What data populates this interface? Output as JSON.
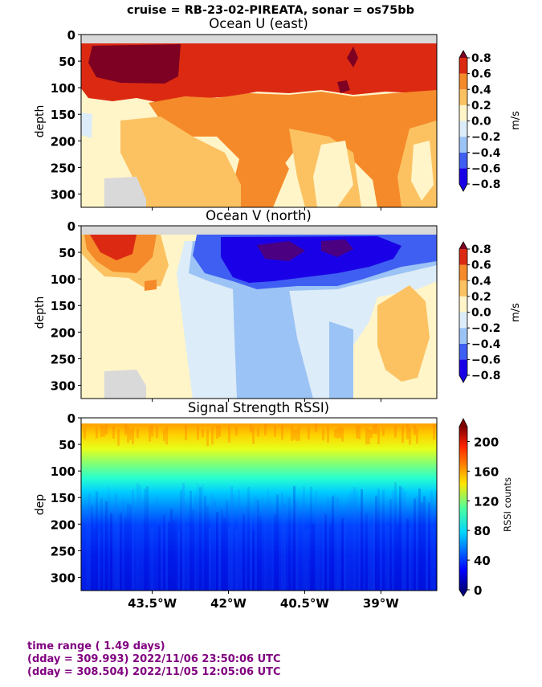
{
  "suptitle": "cruise = RB-23-02-PIREATA,  sonar = os75bb",
  "x_ticks": [
    "43.5°W",
    "42°W",
    "40.5°W",
    "39°W"
  ],
  "footer": {
    "line1": "time range ( 1.49 days)",
    "line2": "(dday = 309.993) 2022/11/06 23:50:06 UTC",
    "line3": "(dday = 308.504) 2022/11/05 12:05:06 UTC",
    "color": "#800080"
  },
  "chart_data": [
    {
      "type": "heatmap",
      "title": "Ocean U (east)",
      "xlabel": "",
      "ylabel": "depth",
      "ylim": [
        325,
        0
      ],
      "y_ticks": [
        "0",
        "50",
        "100",
        "150",
        "200",
        "250",
        "300"
      ],
      "y_tick_values": [
        0,
        50,
        100,
        150,
        200,
        250,
        300
      ],
      "x_tick_lon": [
        -43.5,
        -42.0,
        -40.5,
        -39.0
      ],
      "colorbar": {
        "label": "m/s",
        "ticks": [
          "0.8",
          "0.6",
          "0.4",
          "0.2",
          "0.0",
          "−0.2",
          "−0.4",
          "−0.6",
          "−0.8"
        ],
        "levels": [
          -0.8,
          -0.6,
          -0.4,
          -0.2,
          0.0,
          0.2,
          0.4,
          0.6,
          0.8
        ],
        "colors": [
          "#1a00e6",
          "#3f5ff2",
          "#9cc3f5",
          "#dcecf8",
          "#fff5c9",
          "#fcc262",
          "#f58a2a",
          "#dc2a12",
          "#7e0022"
        ]
      },
      "summary_profile": {
        "depth": [
          25,
          50,
          75,
          100,
          125,
          150,
          200,
          250,
          300
        ],
        "west_value": [
          0.8,
          0.85,
          0.8,
          0.35,
          0.1,
          0.05,
          0.08,
          0.1,
          0.15
        ],
        "east_value": [
          0.7,
          0.65,
          0.6,
          0.55,
          0.4,
          0.3,
          0.2,
          0.25,
          0.3
        ]
      }
    },
    {
      "type": "heatmap",
      "title": "Ocean V (north)",
      "xlabel": "",
      "ylabel": "depth",
      "ylim": [
        325,
        0
      ],
      "y_ticks": [
        "0",
        "50",
        "100",
        "150",
        "200",
        "250",
        "300"
      ],
      "y_tick_values": [
        0,
        50,
        100,
        150,
        200,
        250,
        300
      ],
      "x_tick_lon": [
        -43.5,
        -42.0,
        -40.5,
        -39.0
      ],
      "colorbar": {
        "label": "m/s",
        "ticks": [
          "0.8",
          "0.6",
          "0.4",
          "0.2",
          "0.0",
          "−0.2",
          "−0.4",
          "−0.6",
          "−0.8"
        ],
        "levels": [
          -0.8,
          -0.6,
          -0.4,
          -0.2,
          0.0,
          0.2,
          0.4,
          0.6,
          0.8
        ],
        "colors": [
          "#1a00e6",
          "#3f5ff2",
          "#9cc3f5",
          "#dcecf8",
          "#fff5c9",
          "#fcc262",
          "#f58a2a",
          "#dc2a12",
          "#7e0022"
        ]
      },
      "summary_profile": {
        "depth": [
          25,
          50,
          75,
          100,
          125,
          150,
          200,
          250,
          300
        ],
        "west_value": [
          0.7,
          0.6,
          0.4,
          0.2,
          0.1,
          0.05,
          0.05,
          0.0,
          0.0
        ],
        "center_value": [
          -0.7,
          -0.75,
          -0.7,
          -0.6,
          -0.4,
          -0.3,
          -0.3,
          -0.3,
          -0.25
        ]
      }
    },
    {
      "type": "heatmap",
      "title": "Signal Strength RSSI)",
      "xlabel": "",
      "ylabel": "dep",
      "ylim": [
        325,
        0
      ],
      "y_ticks": [
        "0",
        "50",
        "100",
        "150",
        "200",
        "250",
        "300"
      ],
      "y_tick_values": [
        0,
        50,
        100,
        150,
        200,
        250,
        300
      ],
      "x_tick_lon": [
        -43.5,
        -42.0,
        -40.5,
        -39.0
      ],
      "colorbar": {
        "label": "RSSI counts",
        "ticks": [
          "200",
          "160",
          "120",
          "80",
          "40",
          "0"
        ],
        "levels": [
          0,
          40,
          80,
          120,
          160,
          200,
          220
        ],
        "colormap": "jet"
      },
      "summary_profile": {
        "depth": [
          20,
          50,
          100,
          150,
          200,
          250,
          300
        ],
        "rssi": [
          190,
          150,
          110,
          85,
          45,
          30,
          25
        ]
      }
    }
  ]
}
